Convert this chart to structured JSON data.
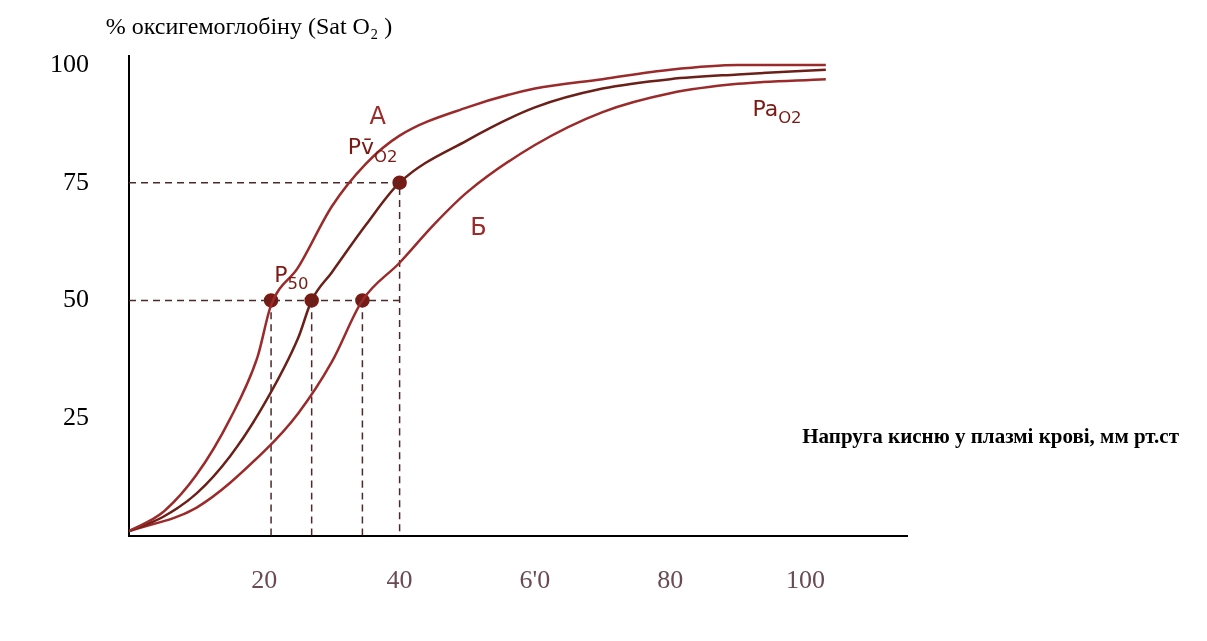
{
  "chart_data": {
    "type": "line",
    "ylabel": "% оксигемоглобіну (Sat O₂ )",
    "xlabel": "Напруга кисню у плазмі крові, мм рт.ст",
    "xlim": [
      0,
      115
    ],
    "ylim": [
      0,
      102
    ],
    "xticks": [
      20,
      40,
      {
        "value": 60,
        "label": "6'0"
      },
      80,
      100
    ],
    "yticks": [
      25,
      50,
      75,
      100
    ],
    "grid": false,
    "series": [
      {
        "name": "A",
        "color": "#9b2a2a",
        "marker": "none",
        "x": [
          0,
          5,
          10,
          15,
          19,
          21,
          25,
          30,
          35,
          40,
          50,
          60,
          70,
          80,
          90,
          103
        ],
        "values": [
          1,
          5,
          13,
          25,
          38,
          49,
          57,
          70,
          79,
          85,
          91,
          95,
          97,
          99,
          100,
          100
        ]
      },
      {
        "color": "#6a2018",
        "marker": "none",
        "x": [
          0,
          5,
          10,
          15,
          20,
          25,
          27,
          30,
          35,
          40,
          50,
          60,
          70,
          80,
          90,
          103
        ],
        "values": [
          1,
          4,
          9,
          17,
          28,
          42,
          50,
          56,
          66,
          75,
          84,
          91,
          95,
          97,
          98,
          99
        ]
      },
      {
        "name": "Б",
        "color": "#9b2a2a",
        "marker": "none",
        "x": [
          0,
          10,
          20,
          25,
          30,
          34.5,
          40,
          45,
          50,
          60,
          70,
          80,
          90,
          103
        ],
        "values": [
          1,
          6,
          18,
          26,
          37,
          50,
          58,
          66,
          73,
          83,
          90,
          94,
          96,
          97
        ]
      },
      {
        "color": "#4a2a2a",
        "marker": "none",
        "line_style": "dashed",
        "x": [
          0,
          40,
          40
        ],
        "values": [
          75,
          75,
          0
        ]
      },
      {
        "color": "#4a2a2a",
        "marker": "none",
        "line_style": "dashed",
        "x": [
          0,
          40
        ],
        "values": [
          50,
          50
        ]
      },
      {
        "color": "#4a2a2a",
        "marker": "none",
        "line_style": "dashed",
        "x": [
          21,
          21
        ],
        "values": [
          50,
          0
        ]
      },
      {
        "color": "#4a2a2a",
        "marker": "none",
        "line_style": "dashed",
        "x": [
          27,
          27
        ],
        "values": [
          50,
          0
        ]
      },
      {
        "color": "#4a2a2a",
        "marker": "none",
        "line_style": "dashed",
        "x": [
          34.5,
          34.5
        ],
        "values": [
          50,
          0
        ]
      },
      {
        "type": "scatter",
        "color": "#7a1a14",
        "marker": "circle",
        "x": [
          21,
          27,
          34.5,
          40
        ],
        "values": [
          50,
          50,
          50,
          75
        ]
      }
    ],
    "annotations": [
      {
        "text": "P$_{50}$",
        "x": 24,
        "y": 54
      },
      {
        "text": "Pv̄$_{O2}$",
        "x": 36,
        "y": 81
      },
      "Pa$_{O2}$"
    ]
  }
}
